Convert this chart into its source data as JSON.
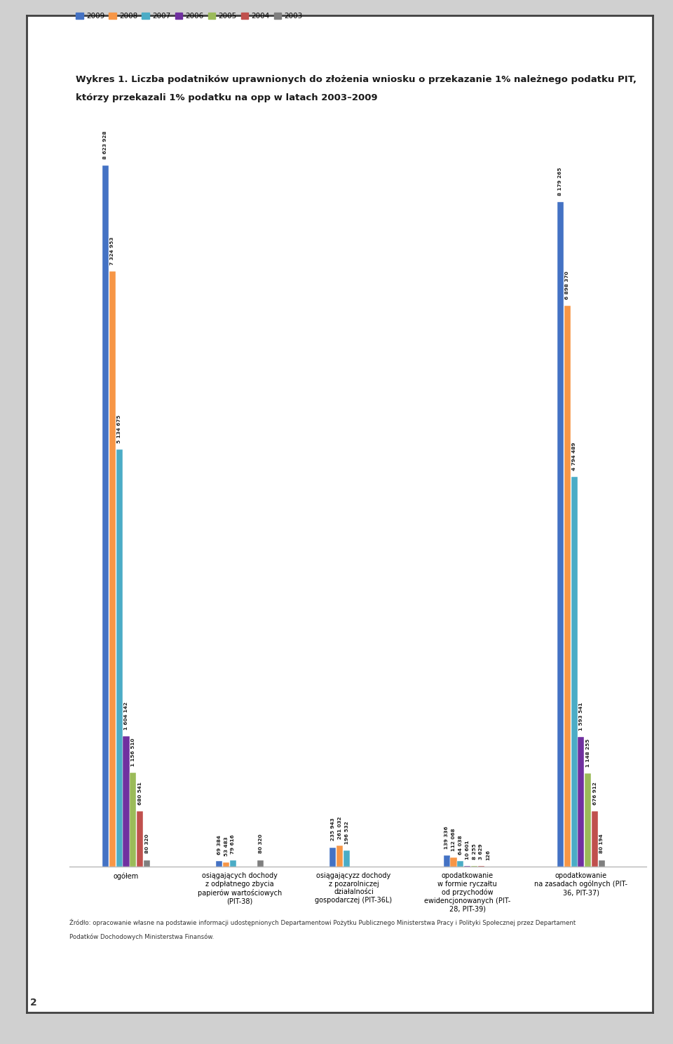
{
  "title_line1": "Wykres 1. Liczba podatników uprawnionych do złożenia wniosku o przekazanie 1% należnego podatku PIT,",
  "title_line2": "którzy przekazali 1% podatku na opp w latach 2003–2009",
  "legend_labels": [
    "2009",
    "2008",
    "2007",
    "2006",
    "2005",
    "2004",
    "2003"
  ],
  "series_colors": [
    "#4472C4",
    "#F79646",
    "#4BACC6",
    "#7030A0",
    "#9BBB59",
    "#C0504D",
    "#7F7F7F"
  ],
  "categories": [
    "ogółem",
    "osiągających dochody\nz odpłatnego zbycia\npapierów wartościowych\n(PIT-38)",
    "osiągającyzz dochody\nz pozarolniczej\ndziałalności\ngospodarczej (PIT-36L)",
    "opodatkowanie\nw formie ryczałtu\nod przychodów\newidencjonowanych (PIT-\n28, PIT-39)",
    "opodatkowanie\nna zasadach ogólnych (PIT-\n36, PIT-37)"
  ],
  "data": [
    [
      8623928,
      7324953,
      5134675,
      1604142,
      1156510,
      680541,
      80320
    ],
    [
      69384,
      53483,
      79616,
      null,
      null,
      null,
      80320
    ],
    [
      235943,
      261032,
      196532,
      null,
      null,
      null,
      null
    ],
    [
      139336,
      112068,
      64038,
      10601,
      8255,
      3629,
      126
    ],
    [
      8179265,
      6898370,
      4794489,
      1593541,
      1148255,
      676912,
      80194
    ]
  ],
  "data_labels": [
    [
      "8 623 928",
      "7 324 953",
      "5 134 675",
      "1 604 142",
      "1 156 510",
      "680 541",
      "80 320"
    ],
    [
      "69 384",
      "53 483",
      "79 616",
      "",
      "",
      "",
      "80 320"
    ],
    [
      "235 943",
      "261 032",
      "196 532",
      "",
      "",
      "",
      ""
    ],
    [
      "139 336",
      "112 068",
      "64 038",
      "10 601",
      "8 255",
      "3 629",
      "126"
    ],
    [
      "8 179 265",
      "6 898 370",
      "4 794 489",
      "1 593 541",
      "1 148 255",
      "676 912",
      "80 194"
    ]
  ],
  "source_text1": "Źródło: opracowanie własne na podstawie informacji udostępnionych Departamentowi Pożytku Publicznego Ministerstwa Pracy i Polityki Społecznej przez Departament",
  "source_text2": "Podatków Dochodowych Ministerstwa Finansów.",
  "page_number": "2",
  "border_color": "#2E4057",
  "header_bg": "#2B2B2B",
  "blue_accent": "#1F6BB0",
  "white_bg": "#FFFFFF",
  "ylim_max": 9800000
}
